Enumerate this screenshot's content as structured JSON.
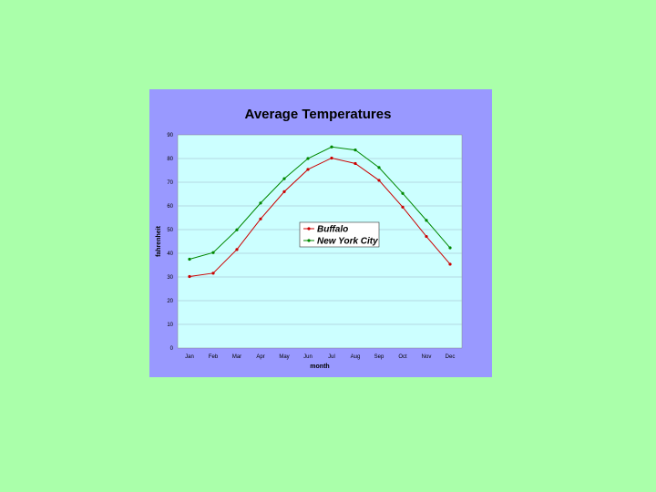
{
  "chart_data": {
    "type": "line",
    "title": "Average Temperatures",
    "xlabel": "month",
    "ylabel": "fahrenheit",
    "categories": [
      "Jan",
      "Feb",
      "Mar",
      "Apr",
      "May",
      "Jun",
      "Jul",
      "Aug",
      "Sep",
      "Oct",
      "Nov",
      "Dec"
    ],
    "ylim": [
      0,
      90
    ],
    "yticks": [
      0,
      10,
      20,
      30,
      40,
      50,
      60,
      70,
      80,
      90
    ],
    "grid": true,
    "legend_position": "center",
    "series": [
      {
        "name": "Buffalo",
        "color": "#cc0000",
        "values": [
          30.2,
          31.6,
          41.6,
          54.5,
          66.0,
          75.4,
          80.2,
          77.9,
          70.8,
          59.5,
          47.1,
          35.4
        ]
      },
      {
        "name": "New York City",
        "color": "#008800",
        "values": [
          37.5,
          40.3,
          49.9,
          61.2,
          71.5,
          80.0,
          84.9,
          83.6,
          76.2,
          65.3,
          53.9,
          42.3
        ]
      }
    ],
    "colors": {
      "plot_background": "#ccffff",
      "gridline": "#9ab4c8",
      "panel": "#9999ff"
    }
  }
}
